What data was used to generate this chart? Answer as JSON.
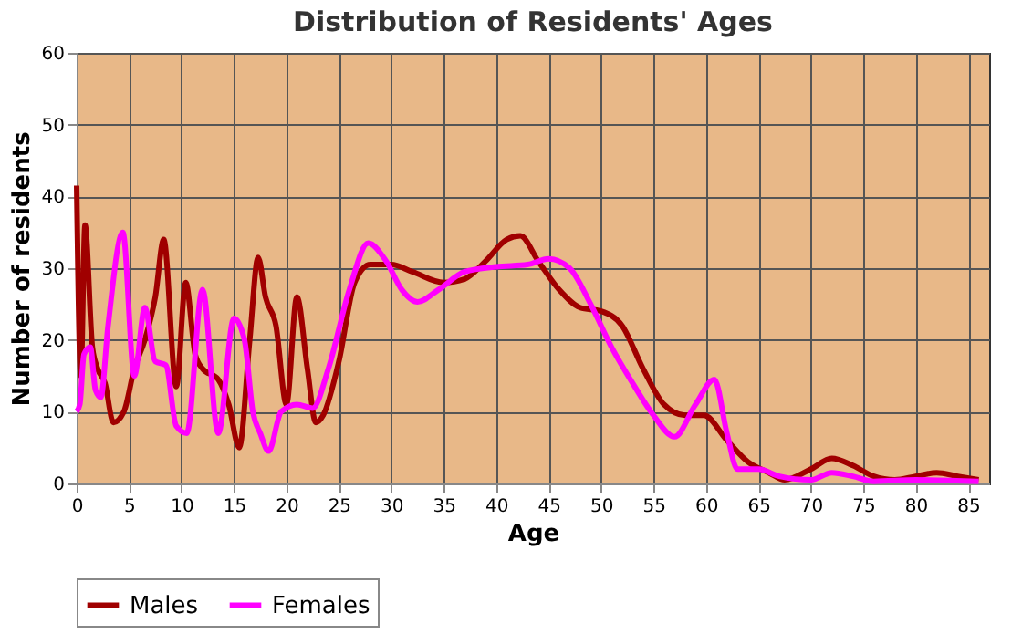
{
  "chart_data": {
    "type": "line",
    "title": "Distribution of Residents' Ages",
    "xlabel": "Age",
    "ylabel": "Number of residents",
    "xlim": [
      0,
      87
    ],
    "xticks": [
      0,
      5,
      10,
      15,
      20,
      25,
      30,
      35,
      40,
      45,
      50,
      55,
      60,
      65,
      70,
      75,
      80,
      85
    ],
    "ylim": [
      0,
      60
    ],
    "yticks": [
      0,
      10,
      20,
      30,
      40,
      50,
      60
    ],
    "grid": true,
    "legend": "bottom",
    "line_style": "solid",
    "marker": "none",
    "series": [
      {
        "name": "Males",
        "color": "#a00000",
        "x": [
          0,
          0.4,
          0.8,
          1.5,
          2,
          2.7,
          3.5,
          4.5,
          5.5,
          6.5,
          7.5,
          8.3,
          9.5,
          10.4,
          11.3,
          12,
          13.5,
          14.5,
          15.5,
          16.5,
          17.3,
          18,
          19,
          20,
          21,
          22,
          22.8,
          23.5,
          25,
          26.5,
          28,
          30,
          32,
          35,
          37,
          39,
          41,
          42.3,
          44,
          46,
          48,
          50,
          52,
          54,
          56,
          58,
          59.8,
          62,
          64,
          66,
          67.5,
          70,
          72,
          74,
          76,
          78,
          80,
          82,
          84,
          86
        ],
        "values": [
          41.5,
          15,
          36,
          19,
          16,
          14,
          8.5,
          10,
          16,
          20,
          26,
          34,
          13.5,
          28,
          18,
          16,
          14.5,
          11,
          5,
          20,
          31.5,
          26,
          22,
          11,
          26,
          16,
          8.5,
          9.5,
          17,
          28,
          30.5,
          30.5,
          29.5,
          28,
          28.5,
          31,
          34,
          34.5,
          31,
          27,
          24.5,
          24,
          22,
          16,
          11,
          9.5,
          9.5,
          6,
          3,
          1.5,
          0.5,
          2,
          3.5,
          2.5,
          1,
          0.5,
          1,
          1.5,
          1,
          0.5
        ]
      },
      {
        "name": "Females",
        "color": "#ff00ff",
        "x": [
          0,
          0.3,
          0.7,
          1.3,
          1.8,
          2.3,
          3,
          4.4,
          5.5,
          6.5,
          7.5,
          8.5,
          9.5,
          10.5,
          12,
          13.5,
          15,
          16,
          16.8,
          17.5,
          18.3,
          19.5,
          21,
          22.5,
          24,
          26,
          27.8,
          29.5,
          31,
          32.5,
          34.5,
          37,
          40,
          43,
          45,
          47,
          49,
          51,
          53,
          55,
          57,
          59,
          60.8,
          62,
          63,
          65,
          67,
          70,
          72,
          74,
          76,
          80,
          86
        ],
        "values": [
          10,
          11,
          18,
          19,
          13,
          12,
          22,
          35,
          15,
          24.5,
          17,
          16.5,
          8,
          7,
          27,
          7,
          23,
          20,
          10,
          7,
          4.5,
          10,
          11,
          10.5,
          16,
          27,
          33.5,
          31,
          27,
          25.3,
          27,
          29.5,
          30.2,
          30.5,
          31.3,
          30,
          25,
          19,
          14,
          9.5,
          6.5,
          11,
          14.5,
          7,
          2,
          2,
          1,
          0.5,
          1.5,
          1,
          0.3,
          0.5,
          0.3
        ]
      }
    ]
  }
}
